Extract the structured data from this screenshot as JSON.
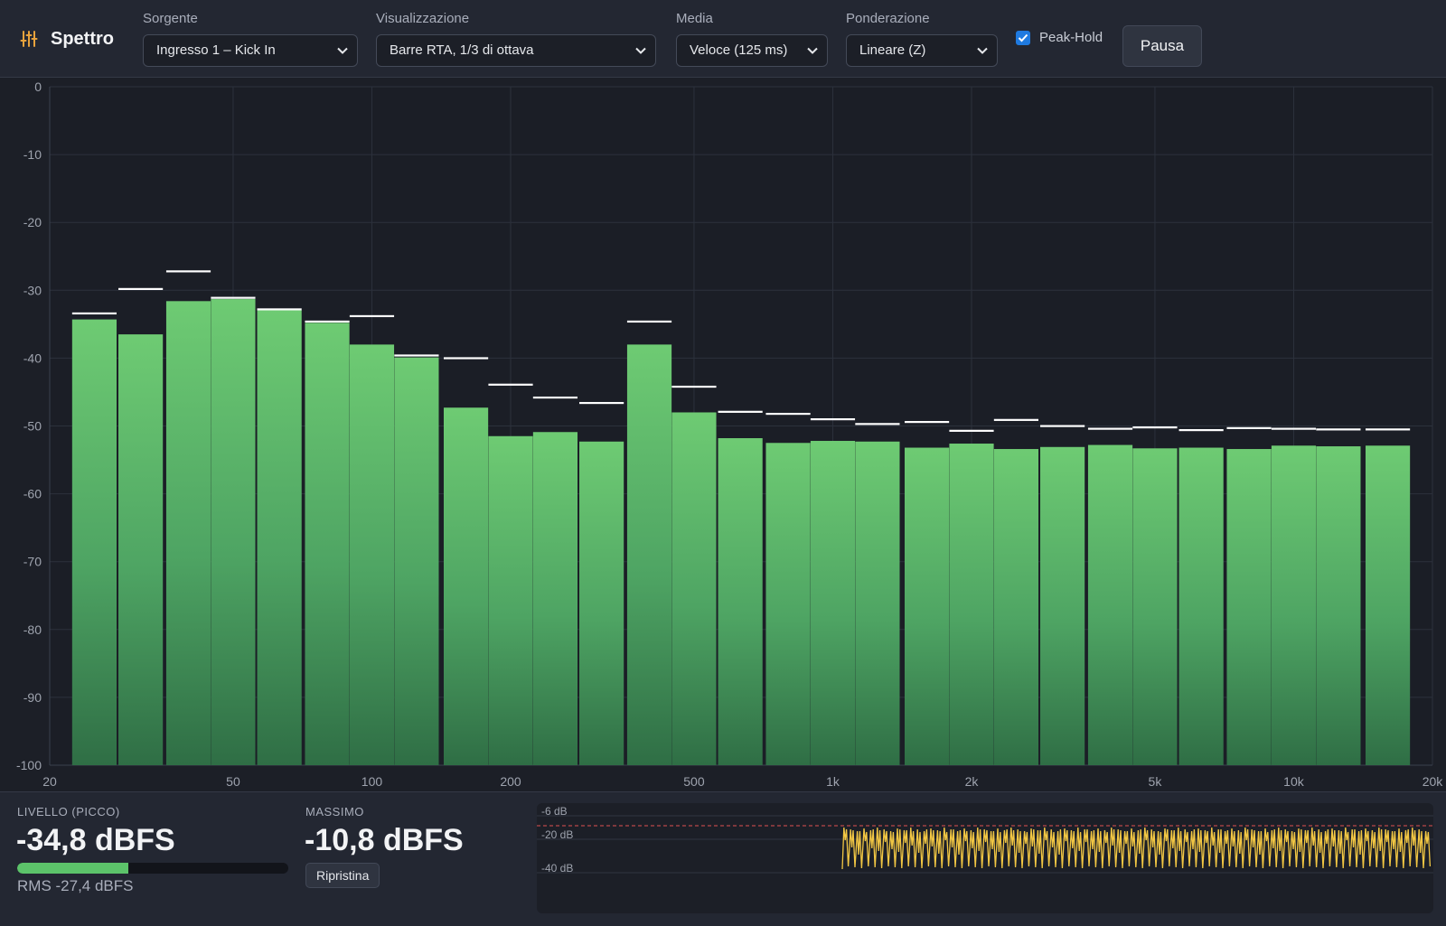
{
  "app": {
    "title": "Spettro",
    "icon": "equalizer-sliders-icon"
  },
  "toolbar": {
    "source": {
      "label": "Sorgente",
      "value": "Ingresso 1 – Kick In"
    },
    "view": {
      "label": "Visualizzazione",
      "value": "Barre RTA, 1/3 di ottava"
    },
    "average": {
      "label": "Media",
      "value": "Veloce (125 ms)"
    },
    "weighting": {
      "label": "Ponderazione",
      "value": "Lineare (Z)"
    },
    "peak_hold": {
      "label": "Peak-Hold",
      "checked": true
    },
    "pause_label": "Pausa"
  },
  "chart_data": {
    "type": "bar",
    "x_scale": "log",
    "x_range": [
      20,
      20000
    ],
    "x_ticks": [
      {
        "value": 20,
        "label": "20"
      },
      {
        "value": 50,
        "label": "50"
      },
      {
        "value": 100,
        "label": "100"
      },
      {
        "value": 200,
        "label": "200"
      },
      {
        "value": 500,
        "label": "500"
      },
      {
        "value": 1000,
        "label": "1k"
      },
      {
        "value": 2000,
        "label": "2k"
      },
      {
        "value": 5000,
        "label": "5k"
      },
      {
        "value": 10000,
        "label": "10k"
      },
      {
        "value": 20000,
        "label": "20k"
      }
    ],
    "y_range": [
      -100,
      0
    ],
    "y_ticks": [
      0,
      -10,
      -20,
      -30,
      -40,
      -50,
      -60,
      -70,
      -80,
      -90,
      -100
    ],
    "grid": true,
    "bands_hz": [
      25,
      31.5,
      40,
      50,
      63,
      80,
      100,
      125,
      160,
      200,
      250,
      315,
      400,
      500,
      630,
      800,
      1000,
      1250,
      1600,
      2000,
      2500,
      3150,
      4000,
      5000,
      6300,
      8000,
      10000,
      12500,
      16000
    ],
    "series": [
      {
        "role": "level",
        "color": "#5cc36a",
        "values": [
          -34.3,
          -36.5,
          -31.6,
          -31.3,
          -32.9,
          -34.8,
          -38.0,
          -39.9,
          -47.3,
          -51.5,
          -50.9,
          -52.3,
          -38.0,
          -48.0,
          -51.8,
          -52.5,
          -52.2,
          -52.3,
          -53.2,
          -52.6,
          -53.4,
          -53.1,
          -52.8,
          -53.3,
          -53.2,
          -53.4,
          -52.9,
          -53.0,
          -52.9
        ]
      },
      {
        "role": "peak-hold",
        "color": "#ffffff",
        "values": [
          -33.4,
          -29.8,
          -27.2,
          -31.1,
          -32.8,
          -34.6,
          -33.8,
          -39.6,
          -40.0,
          -43.9,
          -45.8,
          -46.6,
          -34.6,
          -44.2,
          -47.9,
          -48.2,
          -49.0,
          -49.7,
          -49.4,
          -50.7,
          -49.1,
          -50.0,
          -50.4,
          -50.2,
          -50.6,
          -50.3,
          -50.4,
          -50.5,
          -50.5
        ]
      }
    ]
  },
  "meters": {
    "level_label": "LIVELLO (PICCO)",
    "level_value": "-34,8 dBFS",
    "level_fraction": 0.41,
    "rms": "RMS -27,4 dBFS",
    "max_label": "MASSIMO",
    "max_value": "-10,8 dBFS",
    "reset_label": "Ripristina"
  },
  "history": {
    "labels": [
      "-6 dB",
      "-20 dB",
      "-40 dB"
    ],
    "line_color": "#f2c744",
    "threshold_color": "#e05252"
  }
}
